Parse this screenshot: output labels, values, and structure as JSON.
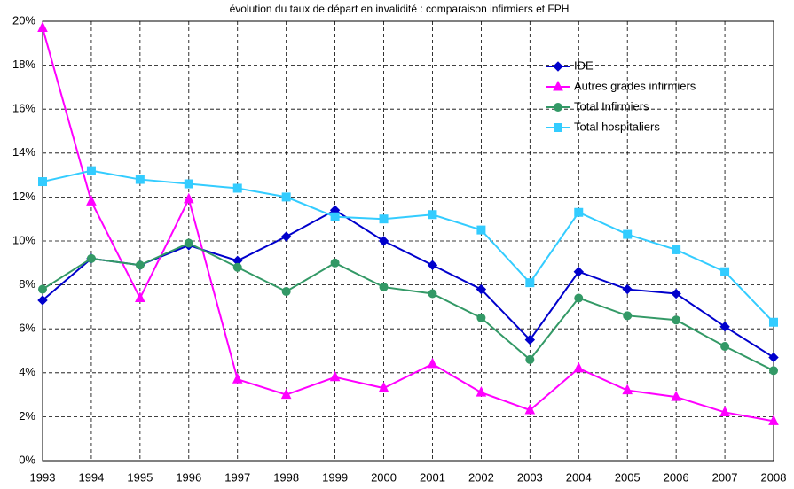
{
  "chart_data": {
    "type": "line",
    "title": "évolution du taux de départ en invalidité : comparaison infirmiers et FPH",
    "categories": [
      "1993",
      "1994",
      "1995",
      "1996",
      "1997",
      "1998",
      "1999",
      "2000",
      "2001",
      "2002",
      "2003",
      "2004",
      "2005",
      "2006",
      "2007",
      "2008"
    ],
    "series": [
      {
        "name": "IDE",
        "color": "#0000cc",
        "marker": "diamond",
        "values": [
          7.3,
          9.2,
          8.9,
          9.8,
          9.1,
          10.2,
          11.4,
          10.0,
          8.9,
          7.8,
          5.5,
          8.6,
          7.8,
          7.6,
          6.1,
          4.7
        ]
      },
      {
        "name": "Autres grades  infirmiers",
        "color": "#ff00ff",
        "marker": "triangle",
        "values": [
          19.7,
          11.8,
          7.4,
          11.9,
          3.7,
          3.0,
          3.8,
          3.3,
          4.4,
          3.1,
          2.3,
          4.2,
          3.2,
          2.9,
          2.2,
          1.8
        ]
      },
      {
        "name": "Total Infirmiers",
        "color": "#339966",
        "marker": "circle",
        "values": [
          7.8,
          9.2,
          8.9,
          9.9,
          8.8,
          7.7,
          9.0,
          7.9,
          7.6,
          6.5,
          4.6,
          7.4,
          6.6,
          6.4,
          5.2,
          4.1
        ]
      },
      {
        "name": "Total hospitaliers",
        "color": "#33ccff",
        "marker": "square",
        "values": [
          12.7,
          13.2,
          12.8,
          12.6,
          12.4,
          12.0,
          11.1,
          11.0,
          11.2,
          10.5,
          8.1,
          11.3,
          10.3,
          9.6,
          8.6,
          6.3
        ]
      }
    ],
    "ylim": [
      0,
      20
    ],
    "yticks": [
      {
        "value": 0,
        "label": "0%"
      },
      {
        "value": 2,
        "label": "2%"
      },
      {
        "value": 4,
        "label": "4%"
      },
      {
        "value": 6,
        "label": "6%"
      },
      {
        "value": 8,
        "label": "8%"
      },
      {
        "value": 10,
        "label": "10%"
      },
      {
        "value": 12,
        "label": "12%"
      },
      {
        "value": 14,
        "label": "14%"
      },
      {
        "value": 16,
        "label": "16%"
      },
      {
        "value": 18,
        "label": "18%"
      },
      {
        "value": 20,
        "label": "20%"
      }
    ],
    "grid": true,
    "legend": "top-right"
  }
}
